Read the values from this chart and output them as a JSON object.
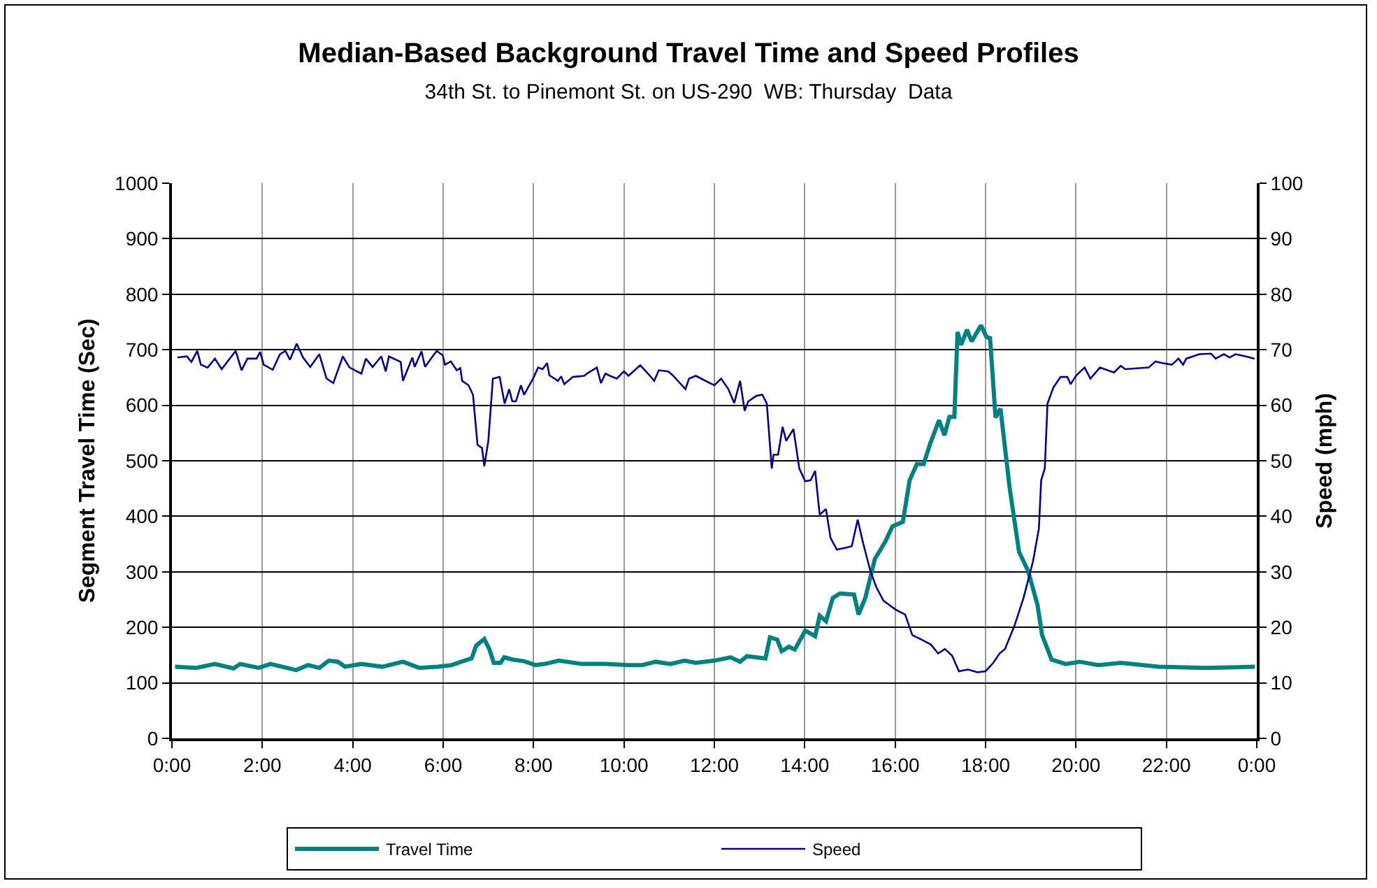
{
  "chart_data": {
    "type": "line",
    "title": "Median-Based Background Travel Time and Speed Profiles",
    "subtitle": "34th St. to Pinemont St. on US-290  WB: Thursday  Data",
    "ylabel": "Segment Travel Time (Sec)",
    "y2label": "Speed (mph)",
    "xlim": [
      0,
      24
    ],
    "xticks": [
      {
        "value": 0,
        "label": "0:00"
      },
      {
        "value": 2,
        "label": "2:00"
      },
      {
        "value": 4,
        "label": "4:00"
      },
      {
        "value": 6,
        "label": "6:00"
      },
      {
        "value": 8,
        "label": "8:00"
      },
      {
        "value": 10,
        "label": "10:00"
      },
      {
        "value": 12,
        "label": "12:00"
      },
      {
        "value": 14,
        "label": "14:00"
      },
      {
        "value": 16,
        "label": "16:00"
      },
      {
        "value": 18,
        "label": "18:00"
      },
      {
        "value": 20,
        "label": "20:00"
      },
      {
        "value": 22,
        "label": "22:00"
      },
      {
        "value": 24,
        "label": "0:00"
      }
    ],
    "ylim": [
      0,
      1000
    ],
    "yticks": [
      0,
      100,
      200,
      300,
      400,
      500,
      600,
      700,
      800,
      900,
      1000
    ],
    "y2lim": [
      0,
      100
    ],
    "y2ticks": [
      0,
      10,
      20,
      30,
      40,
      50,
      60,
      70,
      80,
      90,
      100
    ],
    "grid": true,
    "legend": "bottom",
    "marker": "none",
    "series": [
      {
        "name": "Travel Time",
        "color": "#008080",
        "x": [
          0.07,
          0.54,
          0.95,
          1.36,
          1.51,
          1.92,
          2.18,
          2.75,
          3.01,
          3.26,
          3.47,
          3.67,
          3.83,
          4.19,
          4.65,
          5.11,
          5.47,
          5.88,
          6.19,
          6.4,
          6.63,
          6.73,
          6.91,
          7.02,
          7.12,
          7.27,
          7.35,
          7.53,
          7.79,
          8.04,
          8.25,
          8.56,
          9.07,
          9.59,
          10.1,
          10.41,
          10.7,
          11.03,
          11.34,
          11.59,
          12,
          12.36,
          12.57,
          12.72,
          13.13,
          13.23,
          13.39,
          13.49,
          13.65,
          13.78,
          14.01,
          14.23,
          14.33,
          14.47,
          14.62,
          14.78,
          15.09,
          15.19,
          15.34,
          15.55,
          15.78,
          15.94,
          16.17,
          16.32,
          16.48,
          16.63,
          16.78,
          16.97,
          17.09,
          17.2,
          17.31,
          17.38,
          17.46,
          17.59,
          17.69,
          17.9,
          18.02,
          18.1,
          18.22,
          18.33,
          18.53,
          18.74,
          18.94,
          19.15,
          19.25,
          19.46,
          19.77,
          20.08,
          20.49,
          21,
          21.82,
          22.85,
          23.96
        ],
        "values": [
          129,
          127,
          134,
          126,
          134,
          127,
          134,
          123,
          132,
          127,
          140,
          138,
          129,
          134,
          129,
          138,
          127,
          129,
          132,
          138,
          144,
          167,
          179,
          161,
          136,
          136,
          146,
          142,
          139,
          132,
          134,
          140,
          134,
          134,
          132,
          132,
          138,
          134,
          140,
          136,
          140,
          146,
          138,
          148,
          144,
          182,
          178,
          157,
          165,
          160,
          194,
          184,
          221,
          211,
          253,
          261,
          259,
          223,
          253,
          323,
          354,
          382,
          390,
          465,
          494,
          494,
          532,
          573,
          546,
          579,
          579,
          732,
          709,
          736,
          715,
          744,
          723,
          721,
          578,
          594,
          453,
          336,
          302,
          240,
          186,
          142,
          134,
          138,
          132,
          136,
          129,
          127,
          129
        ]
      },
      {
        "name": "Speed",
        "color": "#000080",
        "axis": "y2",
        "x": [
          0.12,
          0.33,
          0.43,
          0.56,
          0.64,
          0.79,
          0.95,
          1.1,
          1.41,
          1.54,
          1.67,
          1.87,
          1.95,
          2.03,
          2.23,
          2.39,
          2.51,
          2.61,
          2.76,
          2.9,
          3.06,
          3.26,
          3.42,
          3.57,
          3.78,
          3.93,
          4.19,
          4.29,
          4.44,
          4.63,
          4.73,
          4.8,
          5.06,
          5.11,
          5.32,
          5.37,
          5.52,
          5.6,
          5.73,
          5.86,
          5.99,
          6.04,
          6.17,
          6.3,
          6.38,
          6.42,
          6.56,
          6.66,
          6.76,
          6.86,
          6.91,
          7,
          7.1,
          7.25,
          7.36,
          7.46,
          7.53,
          7.61,
          7.72,
          7.79,
          7.99,
          8.1,
          8.2,
          8.3,
          8.35,
          8.54,
          8.61,
          8.68,
          8.87,
          9.12,
          9.18,
          9.4,
          9.49,
          9.59,
          9.69,
          9.84,
          10,
          10.1,
          10.36,
          10.51,
          10.67,
          10.77,
          10.98,
          11.08,
          11.36,
          11.44,
          11.59,
          11.85,
          12,
          12.15,
          12.31,
          12.44,
          12.57,
          12.67,
          12.75,
          12.93,
          13.06,
          13.16,
          13.27,
          13.31,
          13.41,
          13.51,
          13.59,
          13.75,
          13.88,
          14.01,
          14.13,
          14.23,
          14.33,
          14.47,
          14.57,
          14.71,
          14.88,
          15.04,
          15.17,
          15.29,
          15.45,
          15.58,
          15.74,
          16.01,
          16.22,
          16.38,
          16.58,
          16.79,
          16.95,
          17.1,
          17.26,
          17.41,
          17.61,
          17.82,
          18,
          18.17,
          18.31,
          18.43,
          18.64,
          18.84,
          19.05,
          19.18,
          19.23,
          19.31,
          19.37,
          19.5,
          19.66,
          19.81,
          19.88,
          20.01,
          20.19,
          20.32,
          20.53,
          20.84,
          20.99,
          21.09,
          21.61,
          21.76,
          21.91,
          22.12,
          22.27,
          22.37,
          22.44,
          22.73,
          22.99,
          23.09,
          23.27,
          23.4,
          23.53,
          23.76,
          23.95
        ],
        "values": [
          68.6,
          68.8,
          67.8,
          69.8,
          67.3,
          66.8,
          68.4,
          66.5,
          69.8,
          66.3,
          68.4,
          68.4,
          69.6,
          67.3,
          66.4,
          69.2,
          69.8,
          68.2,
          71.1,
          68.6,
          66.9,
          69.2,
          64.8,
          64,
          68.8,
          66.8,
          65.7,
          68.4,
          66.9,
          68.8,
          66.1,
          68.8,
          67.8,
          64.4,
          68.6,
          66.9,
          69.7,
          66.9,
          68.4,
          69.8,
          69,
          67.3,
          67.9,
          66.3,
          66.7,
          64.4,
          63.6,
          61.9,
          52.9,
          52.3,
          49,
          53.6,
          64.8,
          65.1,
          60.3,
          62.9,
          60.7,
          60.7,
          63.6,
          61.9,
          64.8,
          66.8,
          66.5,
          67.6,
          65.4,
          64.4,
          65.2,
          63.8,
          65.1,
          65.3,
          65.7,
          66.8,
          64,
          65.7,
          65.3,
          64.8,
          66.1,
          65.3,
          67.2,
          65.9,
          64.4,
          66.3,
          66.1,
          65.4,
          62.9,
          64.8,
          65.3,
          64.2,
          63.6,
          64.8,
          62.9,
          60.4,
          64.4,
          59,
          60.7,
          61.7,
          61.9,
          60.3,
          48.6,
          51.1,
          51.1,
          56.1,
          53.6,
          55.7,
          48.6,
          46.3,
          46.5,
          48.2,
          40.3,
          41.3,
          36.1,
          34,
          34.3,
          34.6,
          39.4,
          35.2,
          30.2,
          27.3,
          24.8,
          23.2,
          22.3,
          18.6,
          17.8,
          16.9,
          15.3,
          16.1,
          14.9,
          12.1,
          12.4,
          11.9,
          12.1,
          13.6,
          15.3,
          16.1,
          20.3,
          25.3,
          31.9,
          37.8,
          46.5,
          48.6,
          60.3,
          63.2,
          65.1,
          65.1,
          63.8,
          65.4,
          66.8,
          64.8,
          66.8,
          65.9,
          67.1,
          66.5,
          66.8,
          67.9,
          67.6,
          67.3,
          68.4,
          67.3,
          68.4,
          69.2,
          69.3,
          68.4,
          69.2,
          68.6,
          69.2,
          68.8,
          68.4
        ]
      }
    ]
  }
}
